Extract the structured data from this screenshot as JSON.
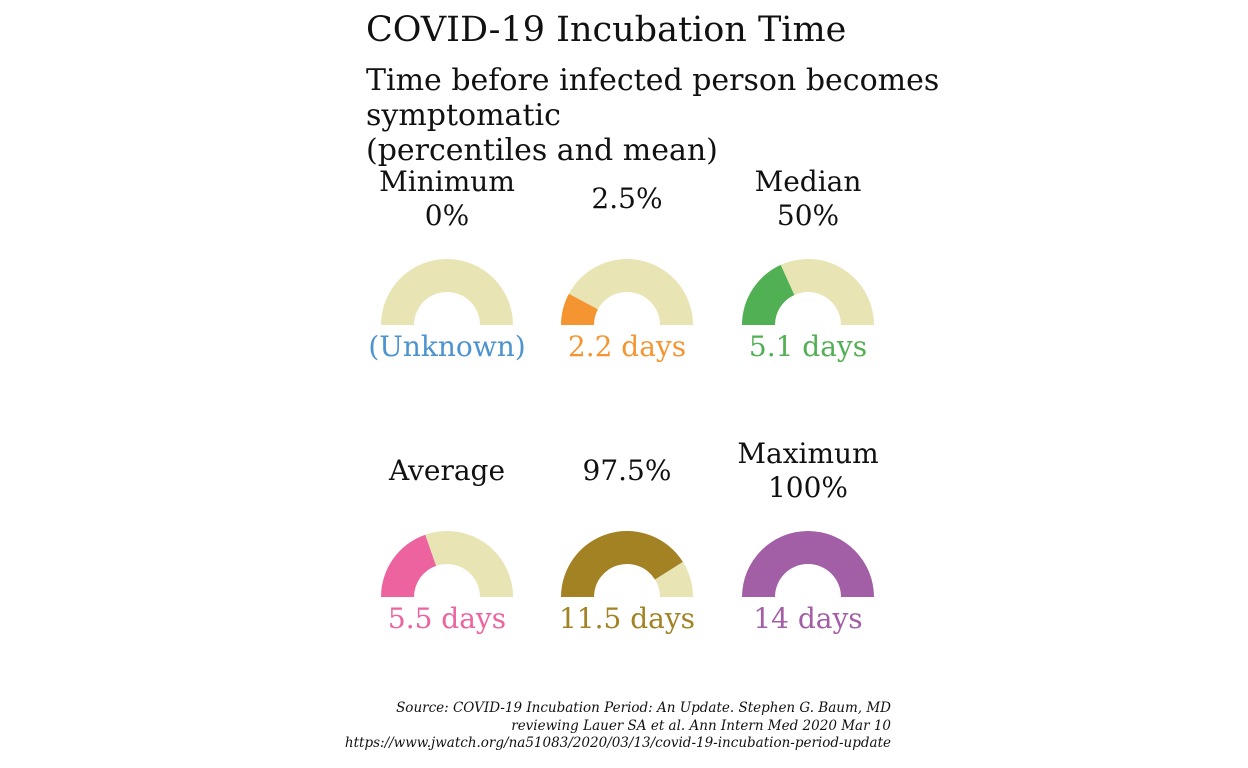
{
  "chart_data": {
    "type": "gauge",
    "title": "COVID-19 Incubation Time",
    "subtitle_lines": [
      "Time before infected person becomes symptomatic",
      "(percentiles and mean)"
    ],
    "max_days": 14,
    "track_color": "#e8e4b4",
    "gauges": [
      {
        "label_lines": [
          "Minimum",
          "0%"
        ],
        "value": null,
        "value_label": "(Unknown)",
        "color": "#4c93cf"
      },
      {
        "label_lines": [
          "2.5%"
        ],
        "value": 2.2,
        "value_label": "2.2 days",
        "color": "#f59532"
      },
      {
        "label_lines": [
          "Median",
          "50%"
        ],
        "value": 5.1,
        "value_label": "5.1 days",
        "color": "#52b054"
      },
      {
        "label_lines": [
          "Average"
        ],
        "value": 5.5,
        "value_label": "5.5 days",
        "color": "#ec63a0"
      },
      {
        "label_lines": [
          "97.5%"
        ],
        "value": 11.5,
        "value_label": "11.5 days",
        "color": "#a38223"
      },
      {
        "label_lines": [
          "Maximum",
          "100%"
        ],
        "value": 14,
        "value_label": "14 days",
        "color": "#a25fa6"
      }
    ],
    "source_lines": [
      "Source: COVID-19 Incubation Period: An Update. Stephen G. Baum, MD",
      "reviewing Lauer SA et al. Ann Intern Med 2020 Mar 10",
      "https://www.jwatch.org/na51083/2020/03/13/covid-19-incubation-period-update"
    ]
  }
}
